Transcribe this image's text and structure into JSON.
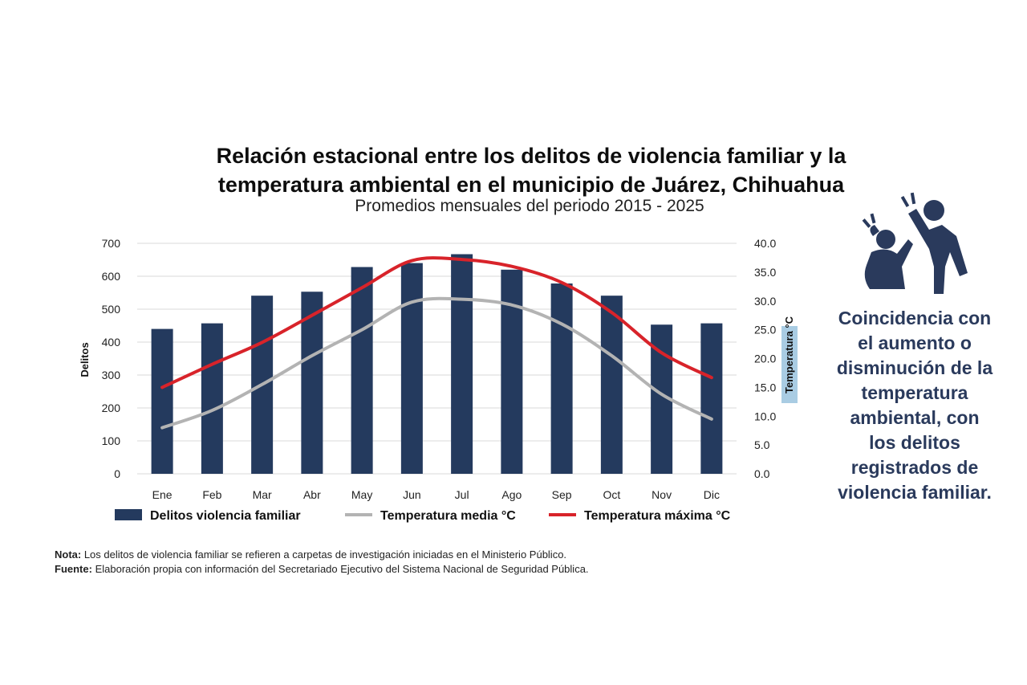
{
  "header": {
    "title_line1": "Relación estacional entre los delitos de violencia familiar y la",
    "title_line2": "temperatura ambiental en el municipio de Juárez, Chihuahua",
    "subtitle": "Promedios mensuales del periodo 2015 - 2025"
  },
  "chart_data": {
    "type": "bar",
    "title": "Relación estacional entre los delitos de violencia familiar y la temperatura ambiental en el municipio de Juárez, Chihuahua",
    "subtitle": "Promedios mensuales del periodo 2015 - 2025",
    "categories": [
      "Ene",
      "Feb",
      "Mar",
      "Abr",
      "May",
      "Jun",
      "Jul",
      "Ago",
      "Sep",
      "Oct",
      "Nov",
      "Dic"
    ],
    "ylabel": "Delitos",
    "y2label": "Temperatura °C",
    "ylim": [
      0,
      700
    ],
    "y2lim": [
      0,
      40
    ],
    "yticks": [
      "0",
      "100",
      "200",
      "300",
      "400",
      "500",
      "600",
      "700"
    ],
    "y2ticks": [
      "0.0",
      "5.0",
      "10.0",
      "15.0",
      "20.0",
      "25.0",
      "30.0",
      "35.0",
      "40.0"
    ],
    "grid": true,
    "legend_position": "bottom",
    "series": [
      {
        "name": "Delitos violencia familiar",
        "kind": "bar",
        "axis": "left",
        "color": "#243a5e",
        "values": [
          440,
          457,
          541,
          553,
          628,
          640,
          667,
          620,
          578,
          541,
          453,
          457
        ]
      },
      {
        "name": "Temperatura media °C",
        "kind": "line",
        "axis": "right",
        "color": "#b3b3b3",
        "values": [
          8.0,
          11.0,
          15.5,
          20.5,
          25.0,
          29.8,
          30.3,
          29.3,
          26.0,
          20.5,
          13.8,
          9.5
        ]
      },
      {
        "name": "Temperatura máxima °C",
        "kind": "line",
        "axis": "right",
        "color": "#d8232a",
        "values": [
          15.0,
          19.0,
          22.8,
          27.5,
          32.3,
          37.0,
          37.2,
          36.0,
          33.2,
          28.0,
          21.0,
          16.7
        ]
      }
    ]
  },
  "notes": {
    "nota_label": "Nota:",
    "nota_text": " Los delitos de violencia familiar se refieren a carpetas de investigación iniciadas en el Ministerio Público.",
    "fuente_label": "Fuente:",
    "fuente_text": " Elaboración propia con información del Secretariado Ejecutivo del Sistema Nacional de Seguridad Pública."
  },
  "side_panel": {
    "icon": "domestic-violence-icon",
    "text": "Coincidencia con el aumento o disminución de la temperatura ambiental, con los delitos registrados de violencia familiar.",
    "text_color": "#2a3a5c"
  }
}
